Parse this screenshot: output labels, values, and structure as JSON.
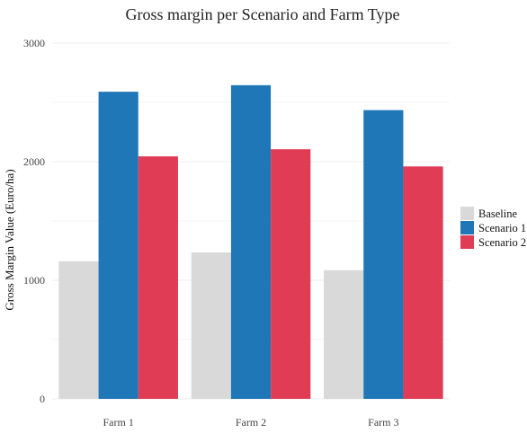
{
  "chart_data": {
    "type": "bar",
    "title": "Gross margin per Scenario and Farm Type",
    "xlabel": "",
    "ylabel": "Gross Margin Value (Euro/ha)",
    "categories": [
      "Farm 1",
      "Farm 2",
      "Farm 3"
    ],
    "series": [
      {
        "name": "Baseline",
        "color": "#d9d9d9",
        "values": [
          1160,
          1235,
          1085
        ]
      },
      {
        "name": "Scenario 1",
        "color": "#1f77b8",
        "values": [
          2590,
          2645,
          2435
        ]
      },
      {
        "name": "Scenario 2",
        "color": "#e03c56",
        "values": [
          2045,
          2105,
          1960
        ]
      }
    ],
    "ylim": [
      0,
      3000
    ],
    "yticks": [
      0,
      1000,
      2000,
      3000
    ],
    "ytick_labels": [
      "0",
      "1000",
      "2000",
      "3000"
    ],
    "grid": true,
    "legend_position": "right"
  }
}
